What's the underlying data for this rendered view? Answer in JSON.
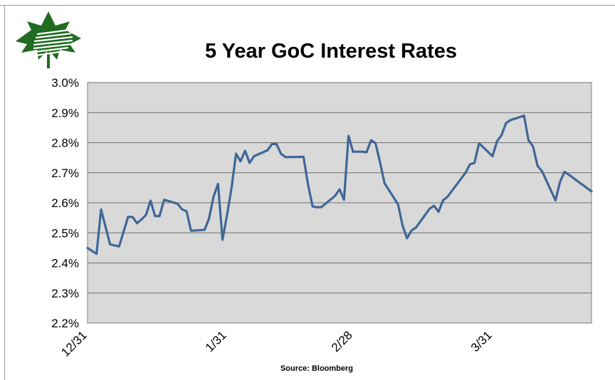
{
  "chart_data": {
    "type": "line",
    "title": "5 Year GoC Interest Rates",
    "source": "Source: Bloomberg",
    "ylim": [
      0.022,
      0.03
    ],
    "y_ticks": [
      "2.2%",
      "2.3%",
      "2.4%",
      "2.5%",
      "2.6%",
      "2.7%",
      "2.8%",
      "2.9%",
      "3.0%"
    ],
    "x_tick_labels": [
      "12/31",
      "1/31",
      "2/28",
      "3/31"
    ],
    "x_tick_dates": [
      "12/31",
      "1/31",
      "2/28",
      "3/31"
    ],
    "grid": true,
    "plot_background": "#d9d9d9",
    "line_color": "#3f6797",
    "series": [
      {
        "points": [
          [
            "12/31",
            0.0245
          ],
          [
            "1/1",
            0.0244
          ],
          [
            "1/2",
            0.0243
          ],
          [
            "1/3",
            0.02578
          ],
          [
            "1/5",
            0.02462
          ],
          [
            "1/7",
            0.02455
          ],
          [
            "1/9",
            0.02553
          ],
          [
            "1/10",
            0.02553
          ],
          [
            "1/11",
            0.02532
          ],
          [
            "1/12",
            0.02545
          ],
          [
            "1/13",
            0.0256
          ],
          [
            "1/14",
            0.02607
          ],
          [
            "1/15",
            0.02556
          ],
          [
            "1/16",
            0.02556
          ],
          [
            "1/17",
            0.0261
          ],
          [
            "1/18",
            0.02606
          ],
          [
            "1/20",
            0.02597
          ],
          [
            "1/21",
            0.02578
          ],
          [
            "1/22",
            0.02572
          ],
          [
            "1/23",
            0.02507
          ],
          [
            "1/26",
            0.0251
          ],
          [
            "1/27",
            0.02548
          ],
          [
            "1/28",
            0.0262
          ],
          [
            "1/29",
            0.02663
          ],
          [
            "1/30",
            0.02477
          ],
          [
            "1/31",
            0.0256
          ],
          [
            "2/1",
            0.0265
          ],
          [
            "2/2",
            0.02763
          ],
          [
            "2/3",
            0.02738
          ],
          [
            "2/4",
            0.02773
          ],
          [
            "2/5",
            0.02733
          ],
          [
            "2/6",
            0.02755
          ],
          [
            "2/9",
            0.02775
          ],
          [
            "2/10",
            0.02796
          ],
          [
            "2/11",
            0.02795
          ],
          [
            "2/12",
            0.02763
          ],
          [
            "2/13",
            0.02752
          ],
          [
            "2/17",
            0.02753
          ],
          [
            "2/18",
            0.0266
          ],
          [
            "2/19",
            0.02588
          ],
          [
            "2/20",
            0.02585
          ],
          [
            "2/21",
            0.02586
          ],
          [
            "2/24",
            0.02623
          ],
          [
            "2/25",
            0.02645
          ],
          [
            "2/26",
            0.0261
          ],
          [
            "2/27",
            0.02823
          ],
          [
            "2/28",
            0.0277
          ],
          [
            "3/2",
            0.0277
          ],
          [
            "3/3",
            0.02768
          ],
          [
            "3/4",
            0.02808
          ],
          [
            "3/5",
            0.02798
          ],
          [
            "3/6",
            0.02735
          ],
          [
            "3/7",
            0.02665
          ],
          [
            "3/10",
            0.02595
          ],
          [
            "3/11",
            0.02525
          ],
          [
            "3/12",
            0.02482
          ],
          [
            "3/13",
            0.02508
          ],
          [
            "3/14",
            0.02518
          ],
          [
            "3/17",
            0.0258
          ],
          [
            "3/18",
            0.0259
          ],
          [
            "3/19",
            0.0257
          ],
          [
            "3/20",
            0.02608
          ],
          [
            "3/21",
            0.0262
          ],
          [
            "3/24",
            0.0268
          ],
          [
            "3/25",
            0.027
          ],
          [
            "3/26",
            0.02728
          ],
          [
            "3/27",
            0.02733
          ],
          [
            "3/28",
            0.02798
          ],
          [
            "3/31",
            0.02755
          ],
          [
            "4/1",
            0.02805
          ],
          [
            "4/2",
            0.02825
          ],
          [
            "4/3",
            0.02865
          ],
          [
            "4/4",
            0.02875
          ],
          [
            "4/7",
            0.0289
          ],
          [
            "4/8",
            0.02808
          ],
          [
            "4/9",
            0.02788
          ],
          [
            "4/10",
            0.02723
          ],
          [
            "4/11",
            0.02705
          ],
          [
            "4/14",
            0.02608
          ],
          [
            "4/15",
            0.0267
          ],
          [
            "4/16",
            0.02703
          ],
          [
            "4/17",
            0.02693
          ],
          [
            "4/22",
            0.02638
          ]
        ]
      }
    ]
  }
}
